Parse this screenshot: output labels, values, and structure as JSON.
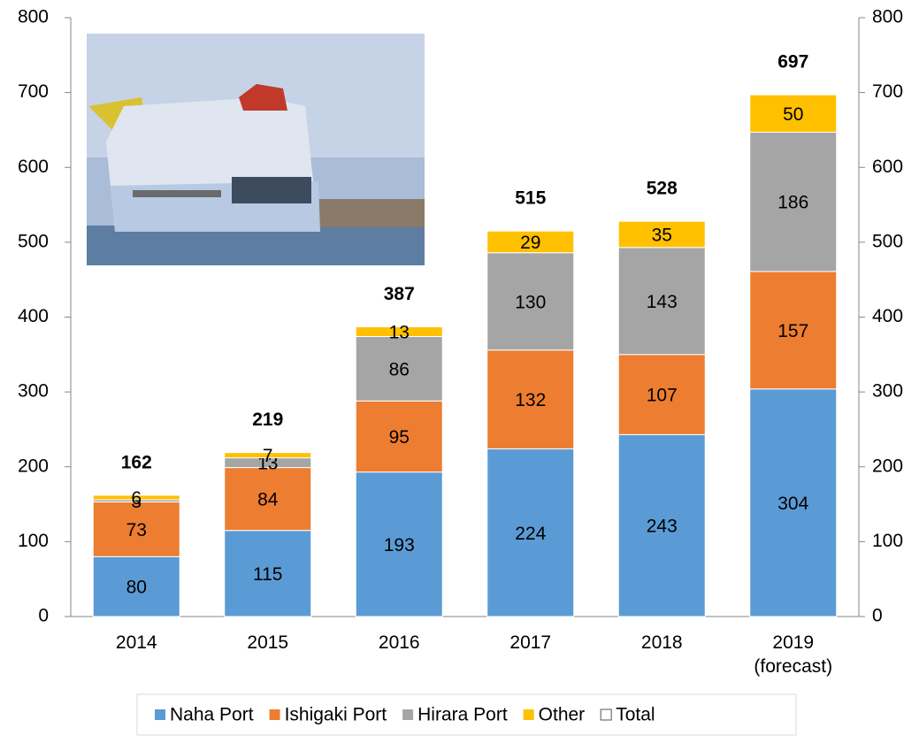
{
  "chart_data": {
    "type": "stacked-bar",
    "categories": [
      "2014",
      "2015",
      "2016",
      "2017",
      "2018",
      "2019\n(forecast)"
    ],
    "series": [
      {
        "name": "Naha Port",
        "color": "#5b9bd5",
        "values": [
          80,
          115,
          193,
          224,
          243,
          304
        ]
      },
      {
        "name": "Ishigaki Port",
        "color": "#ed7d31",
        "values": [
          73,
          84,
          95,
          132,
          107,
          157
        ]
      },
      {
        "name": "Hirara Port",
        "color": "#a5a5a5",
        "values": [
          3,
          13,
          86,
          130,
          143,
          186
        ]
      },
      {
        "name": "Other",
        "color": "#ffc000",
        "values": [
          6,
          7,
          13,
          29,
          35,
          50
        ]
      }
    ],
    "totals": {
      "name": "Total",
      "color": "#ffffff",
      "values": [
        162,
        219,
        387,
        515,
        528,
        697
      ]
    },
    "ylim": [
      0,
      800
    ],
    "yticks": [
      0,
      100,
      200,
      300,
      400,
      500,
      600,
      700,
      800
    ],
    "y2lim": [
      0,
      800
    ],
    "y2ticks": [
      0,
      100,
      200,
      300,
      400,
      500,
      600,
      700,
      800
    ],
    "grid": false,
    "legend": "bottom"
  }
}
